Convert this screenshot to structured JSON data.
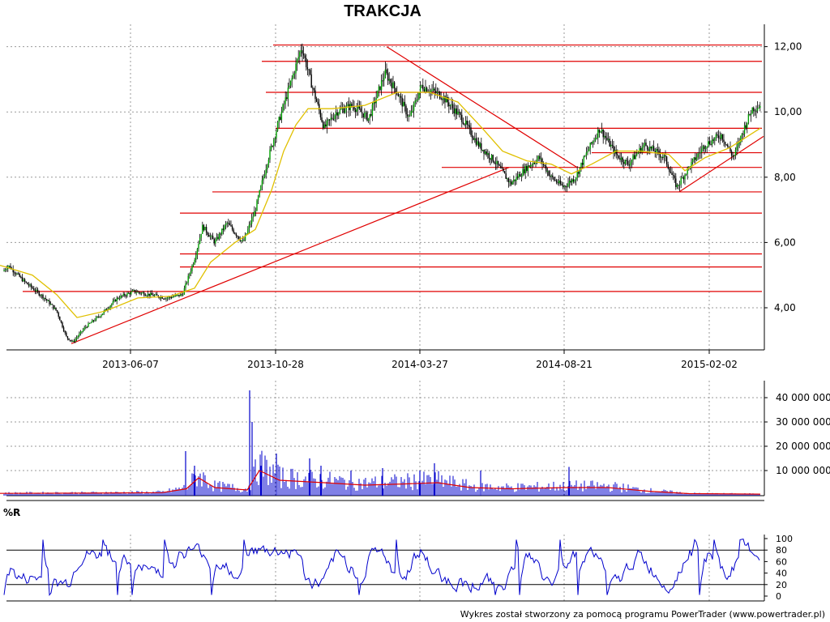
{
  "chart_data": [
    {
      "type": "candlestick",
      "title": "TRAKCJA",
      "panel": "price",
      "x_tick_labels": [
        "2013-06-07",
        "2013-10-28",
        "2014-03-27",
        "2014-08-21",
        "2015-02-02"
      ],
      "y_tick_labels": [
        "4,00",
        "6,00",
        "8,00",
        "10,00",
        "12,00"
      ],
      "ylim": [
        2.8,
        12.2
      ],
      "grid": true,
      "close_path": [
        [
          0,
          5.0
        ],
        [
          10,
          5.3
        ],
        [
          30,
          4.8
        ],
        [
          55,
          4.3
        ],
        [
          70,
          3.9
        ],
        [
          82,
          3.1
        ],
        [
          90,
          2.95
        ],
        [
          105,
          3.4
        ],
        [
          125,
          3.8
        ],
        [
          145,
          4.3
        ],
        [
          165,
          4.5
        ],
        [
          185,
          4.4
        ],
        [
          205,
          4.3
        ],
        [
          225,
          4.4
        ],
        [
          240,
          5.5
        ],
        [
          250,
          6.5
        ],
        [
          265,
          6.0
        ],
        [
          280,
          6.6
        ],
        [
          300,
          6.0
        ],
        [
          315,
          7.0
        ],
        [
          330,
          8.5
        ],
        [
          345,
          9.8
        ],
        [
          360,
          11.0
        ],
        [
          372,
          12.0
        ],
        [
          385,
          10.8
        ],
        [
          400,
          9.5
        ],
        [
          415,
          10.0
        ],
        [
          435,
          10.2
        ],
        [
          455,
          9.8
        ],
        [
          475,
          11.2
        ],
        [
          490,
          10.6
        ],
        [
          505,
          9.8
        ],
        [
          520,
          10.8
        ],
        [
          545,
          10.5
        ],
        [
          570,
          9.8
        ],
        [
          590,
          9.0
        ],
        [
          610,
          8.5
        ],
        [
          630,
          7.8
        ],
        [
          650,
          8.3
        ],
        [
          665,
          8.6
        ],
        [
          680,
          8.0
        ],
        [
          695,
          7.7
        ],
        [
          710,
          8.0
        ],
        [
          725,
          8.8
        ],
        [
          740,
          9.5
        ],
        [
          760,
          8.7
        ],
        [
          775,
          8.4
        ],
        [
          795,
          9.0
        ],
        [
          820,
          8.6
        ],
        [
          835,
          7.7
        ],
        [
          850,
          8.3
        ],
        [
          870,
          9.0
        ],
        [
          890,
          9.3
        ],
        [
          905,
          8.6
        ],
        [
          918,
          9.5
        ],
        [
          928,
          10.1
        ],
        [
          938,
          10.2
        ]
      ],
      "moving_average_path": [
        [
          0,
          5.3
        ],
        [
          40,
          5.0
        ],
        [
          70,
          4.4
        ],
        [
          95,
          3.7
        ],
        [
          130,
          3.9
        ],
        [
          170,
          4.3
        ],
        [
          210,
          4.35
        ],
        [
          240,
          4.6
        ],
        [
          260,
          5.4
        ],
        [
          290,
          6.0
        ],
        [
          315,
          6.4
        ],
        [
          335,
          7.6
        ],
        [
          350,
          8.8
        ],
        [
          365,
          9.6
        ],
        [
          380,
          10.1
        ],
        [
          410,
          10.1
        ],
        [
          450,
          10.2
        ],
        [
          490,
          10.6
        ],
        [
          530,
          10.6
        ],
        [
          565,
          10.3
        ],
        [
          595,
          9.5
        ],
        [
          620,
          8.8
        ],
        [
          650,
          8.5
        ],
        [
          680,
          8.4
        ],
        [
          705,
          8.1
        ],
        [
          730,
          8.4
        ],
        [
          760,
          8.8
        ],
        [
          790,
          8.8
        ],
        [
          825,
          8.7
        ],
        [
          845,
          8.2
        ],
        [
          870,
          8.6
        ],
        [
          900,
          8.9
        ],
        [
          938,
          9.5
        ]
      ],
      "support_resistance_levels": [
        4.5,
        5.25,
        5.65,
        6.9,
        7.55,
        8.3,
        8.75,
        9.5,
        10.6,
        11.55,
        12.05
      ],
      "trendlines": [
        {
          "from": [
            88,
            2.9
          ],
          "to": [
            628,
            8.3
          ]
        },
        {
          "from": [
            477,
            12.0
          ],
          "to": [
            712,
            8.3
          ]
        },
        {
          "from": [
            838,
            7.55
          ],
          "to": [
            942,
            9.25
          ]
        }
      ]
    },
    {
      "type": "bar",
      "panel": "volume",
      "y_tick_labels": [
        "10 000 000",
        "20 000 000",
        "30 000 000",
        "40 000 000"
      ],
      "ylim": [
        0,
        45000000
      ],
      "spikes": [
        [
          229,
          18000000
        ],
        [
          240,
          12000000
        ],
        [
          308,
          43000000
        ],
        [
          311,
          30000000
        ],
        [
          322,
          12000000
        ],
        [
          341,
          17000000
        ],
        [
          382,
          15000000
        ],
        [
          396,
          12000000
        ],
        [
          433,
          10000000
        ],
        [
          472,
          11000000
        ],
        [
          518,
          10000000
        ],
        [
          536,
          13000000
        ],
        [
          593,
          10000000
        ],
        [
          702,
          11500000
        ]
      ],
      "average_line": [
        [
          0,
          600000
        ],
        [
          100,
          700000
        ],
        [
          200,
          900000
        ],
        [
          230,
          2500000
        ],
        [
          245,
          7000000
        ],
        [
          265,
          3000000
        ],
        [
          305,
          2000000
        ],
        [
          320,
          10000000
        ],
        [
          345,
          6000000
        ],
        [
          400,
          5000000
        ],
        [
          450,
          4000000
        ],
        [
          500,
          4500000
        ],
        [
          540,
          5000000
        ],
        [
          580,
          3000000
        ],
        [
          630,
          2500000
        ],
        [
          700,
          3000000
        ],
        [
          750,
          3000000
        ],
        [
          800,
          1500000
        ],
        [
          850,
          500000
        ],
        [
          938,
          300000
        ]
      ]
    },
    {
      "type": "line",
      "panel": "williams_r",
      "label": "%R",
      "y_tick_labels": [
        "0",
        "20",
        "40",
        "60",
        "80",
        "100"
      ],
      "ylim": [
        0,
        100
      ],
      "reference_levels": [
        20,
        80
      ],
      "series_color": "#0000cc"
    }
  ],
  "footer": "Wykres został stworzony za pomocą programu PowerTrader (www.powertrader.pl)",
  "colors": {
    "candle_up": "#00a000",
    "candle_down": "#000000",
    "moving_average": "#e0c000",
    "levels": "#e00000",
    "volume_bars": "#0000cc",
    "volume_average": "#e00000",
    "williams_r": "#0000cc",
    "grid": "#999999"
  }
}
